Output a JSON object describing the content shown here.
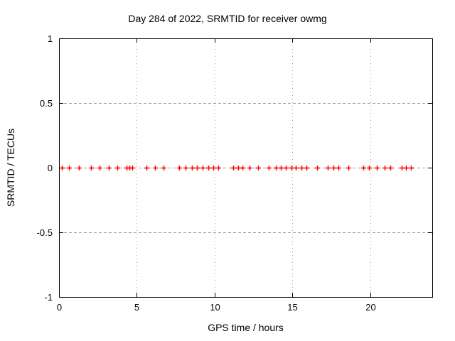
{
  "chart_data": {
    "type": "scatter",
    "title": "Day 284 of 2022, SRMTID for receiver owmg",
    "xlabel": "GPS time / hours",
    "ylabel": "SRMTID / TECUs",
    "xlim": [
      0,
      24
    ],
    "ylim": [
      -1,
      1
    ],
    "xticks": [
      0,
      5,
      10,
      15,
      20
    ],
    "yticks": [
      1,
      0.5,
      0,
      -0.5,
      -1
    ],
    "grid": true,
    "legend_position": "none",
    "marker": "plus",
    "series": [
      {
        "name": "SRMTID",
        "x": [
          0.17,
          0.63,
          1.28,
          2.06,
          2.59,
          3.2,
          3.76,
          4.34,
          4.53,
          4.71,
          5.6,
          6.18,
          6.72,
          7.72,
          8.13,
          8.55,
          8.87,
          9.22,
          9.6,
          9.92,
          10.24,
          11.2,
          11.5,
          11.8,
          12.24,
          12.8,
          13.49,
          13.94,
          14.28,
          14.6,
          14.94,
          15.24,
          15.58,
          15.92,
          16.61,
          17.3,
          17.63,
          17.98,
          18.59,
          19.58,
          19.92,
          20.42,
          20.95,
          21.29,
          22.02,
          22.32,
          22.63
        ],
        "y": [
          0,
          0,
          0,
          0,
          0,
          0,
          0,
          0,
          0,
          0,
          0,
          0,
          0,
          0,
          0,
          0,
          0,
          0,
          0,
          0,
          0,
          0,
          0,
          0,
          0,
          0,
          0,
          0,
          0,
          0,
          0,
          0,
          0,
          0,
          0,
          0,
          0,
          0,
          0,
          0,
          0,
          0,
          0,
          0,
          0,
          0,
          0
        ]
      }
    ]
  },
  "colors": {
    "background": "#ffffff",
    "axis": "#000000",
    "grid": "#9e9e9e",
    "text": "#000000",
    "marker": "#ff0000"
  }
}
